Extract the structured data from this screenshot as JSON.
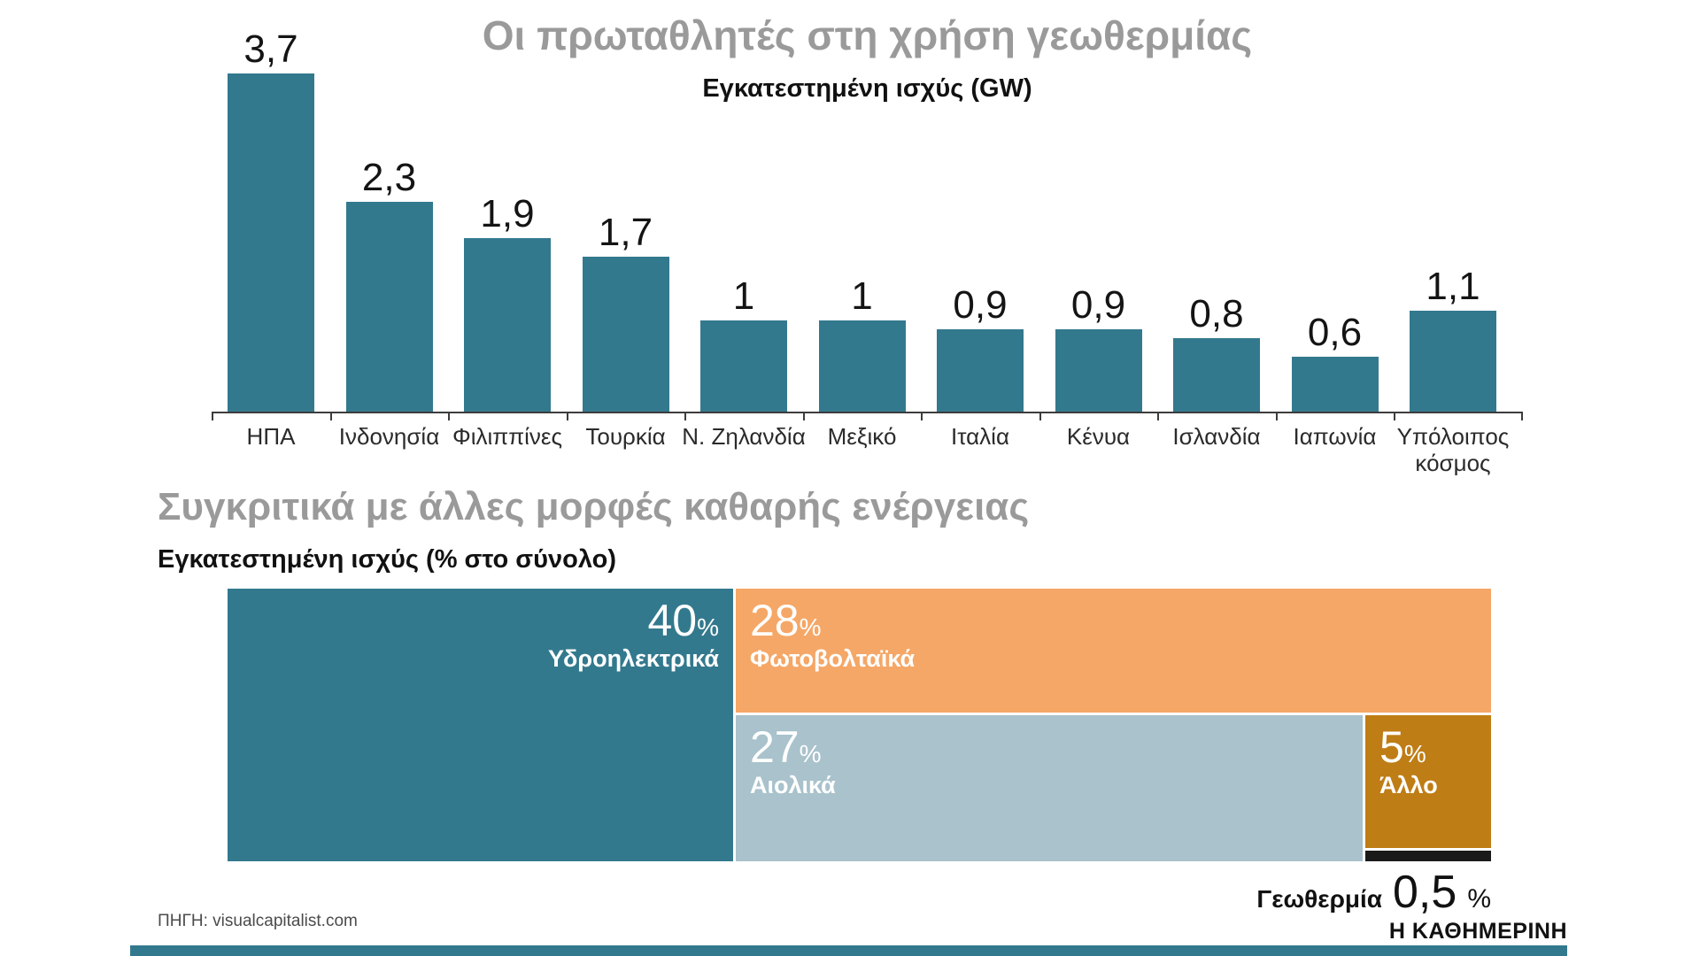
{
  "colors": {
    "teal": "#33798e",
    "orange": "#f5a767",
    "light_blue": "#a9c2cc",
    "ochre": "#bf7d15",
    "black_bar": "#1a1a1a",
    "title_gray": "#9a9a9a"
  },
  "bar_chart": {
    "title": "Οι πρωταθλητές στη χρήση γεωθερμίας",
    "subtitle": "Εγκατεστημένη ισχύς (GW)",
    "bars": [
      {
        "label": "ΗΠΑ",
        "value": 3.7,
        "display": "3,7"
      },
      {
        "label": "Ινδονησία",
        "value": 2.3,
        "display": "2,3"
      },
      {
        "label": "Φιλιππίνες",
        "value": 1.9,
        "display": "1,9"
      },
      {
        "label": "Τουρκία",
        "value": 1.7,
        "display": "1,7"
      },
      {
        "label": "Ν. Ζηλανδία",
        "value": 1,
        "display": "1"
      },
      {
        "label": "Μεξικό",
        "value": 1,
        "display": "1"
      },
      {
        "label": "Ιταλία",
        "value": 0.9,
        "display": "0,9"
      },
      {
        "label": "Κένυα",
        "value": 0.9,
        "display": "0,9"
      },
      {
        "label": "Ισλανδία",
        "value": 0.8,
        "display": "0,8"
      },
      {
        "label": "Ιαπωνία",
        "value": 0.6,
        "display": "0,6"
      },
      {
        "label": "Υπόλοιπος κόσμος",
        "value": 1.1,
        "display": "1,1"
      }
    ]
  },
  "treemap": {
    "title": "Συγκριτικά με άλλες μορφές καθαρής ενέργειας",
    "subtitle": "Εγκατεστημένη ισχύς (% στο σύνολο)",
    "percent_sign": "%",
    "blocks": [
      {
        "name": "Υδροηλεκτρικά",
        "value": 40,
        "display": "40"
      },
      {
        "name": "Φωτοβολταϊκά",
        "value": 28,
        "display": "28"
      },
      {
        "name": "Αιολικά",
        "value": 27,
        "display": "27"
      },
      {
        "name": "Άλλο",
        "value": 5,
        "display": "5"
      }
    ],
    "geothermal": {
      "name": "Γεωθερμία",
      "value": 0.5,
      "display": "0,5"
    }
  },
  "footer": {
    "source": "ΠΗΓΗ: visualcapitalist.com",
    "brand": "Η ΚΑΘΗΜΕΡΙΝΗ"
  },
  "chart_data": [
    {
      "type": "bar",
      "title": "Οι πρωταθλητές στη χρήση γεωθερμίας",
      "subtitle": "Εγκατεστημένη ισχύς (GW)",
      "unit": "GW",
      "categories": [
        "ΗΠΑ",
        "Ινδονησία",
        "Φιλιππίνες",
        "Τουρκία",
        "Ν. Ζηλανδία",
        "Μεξικό",
        "Ιταλία",
        "Κένυα",
        "Ισλανδία",
        "Ιαπωνία",
        "Υπόλοιπος κόσμος"
      ],
      "values": [
        3.7,
        2.3,
        1.9,
        1.7,
        1,
        1,
        0.9,
        0.9,
        0.8,
        0.6,
        1.1
      ],
      "value_labels": [
        "3,7",
        "2,3",
        "1,9",
        "1,7",
        "1",
        "1",
        "0,9",
        "0,9",
        "0,8",
        "0,6",
        "1,1"
      ],
      "ylim": [
        0,
        3.7
      ],
      "grid": false,
      "legend": "none",
      "bar_color": "#33798e"
    },
    {
      "type": "treemap",
      "title": "Συγκριτικά με άλλες μορφές καθαρής ενέργειας",
      "subtitle": "Εγκατεστημένη ισχύς (% στο σύνολο)",
      "unit": "% of total installed clean-energy capacity",
      "slices": [
        {
          "name": "Υδροηλεκτρικά",
          "value": 40,
          "display": "40%",
          "color": "#33798e"
        },
        {
          "name": "Φωτοβολταϊκά",
          "value": 28,
          "display": "28%",
          "color": "#f5a767"
        },
        {
          "name": "Αιολικά",
          "value": 27,
          "display": "27%",
          "color": "#a9c2cc"
        },
        {
          "name": "Άλλο",
          "value": 5,
          "display": "5%",
          "color": "#bf7d15"
        },
        {
          "name": "Γεωθερμία",
          "value": 0.5,
          "display": "0,5%",
          "color": "#1a1a1a"
        }
      ]
    }
  ]
}
